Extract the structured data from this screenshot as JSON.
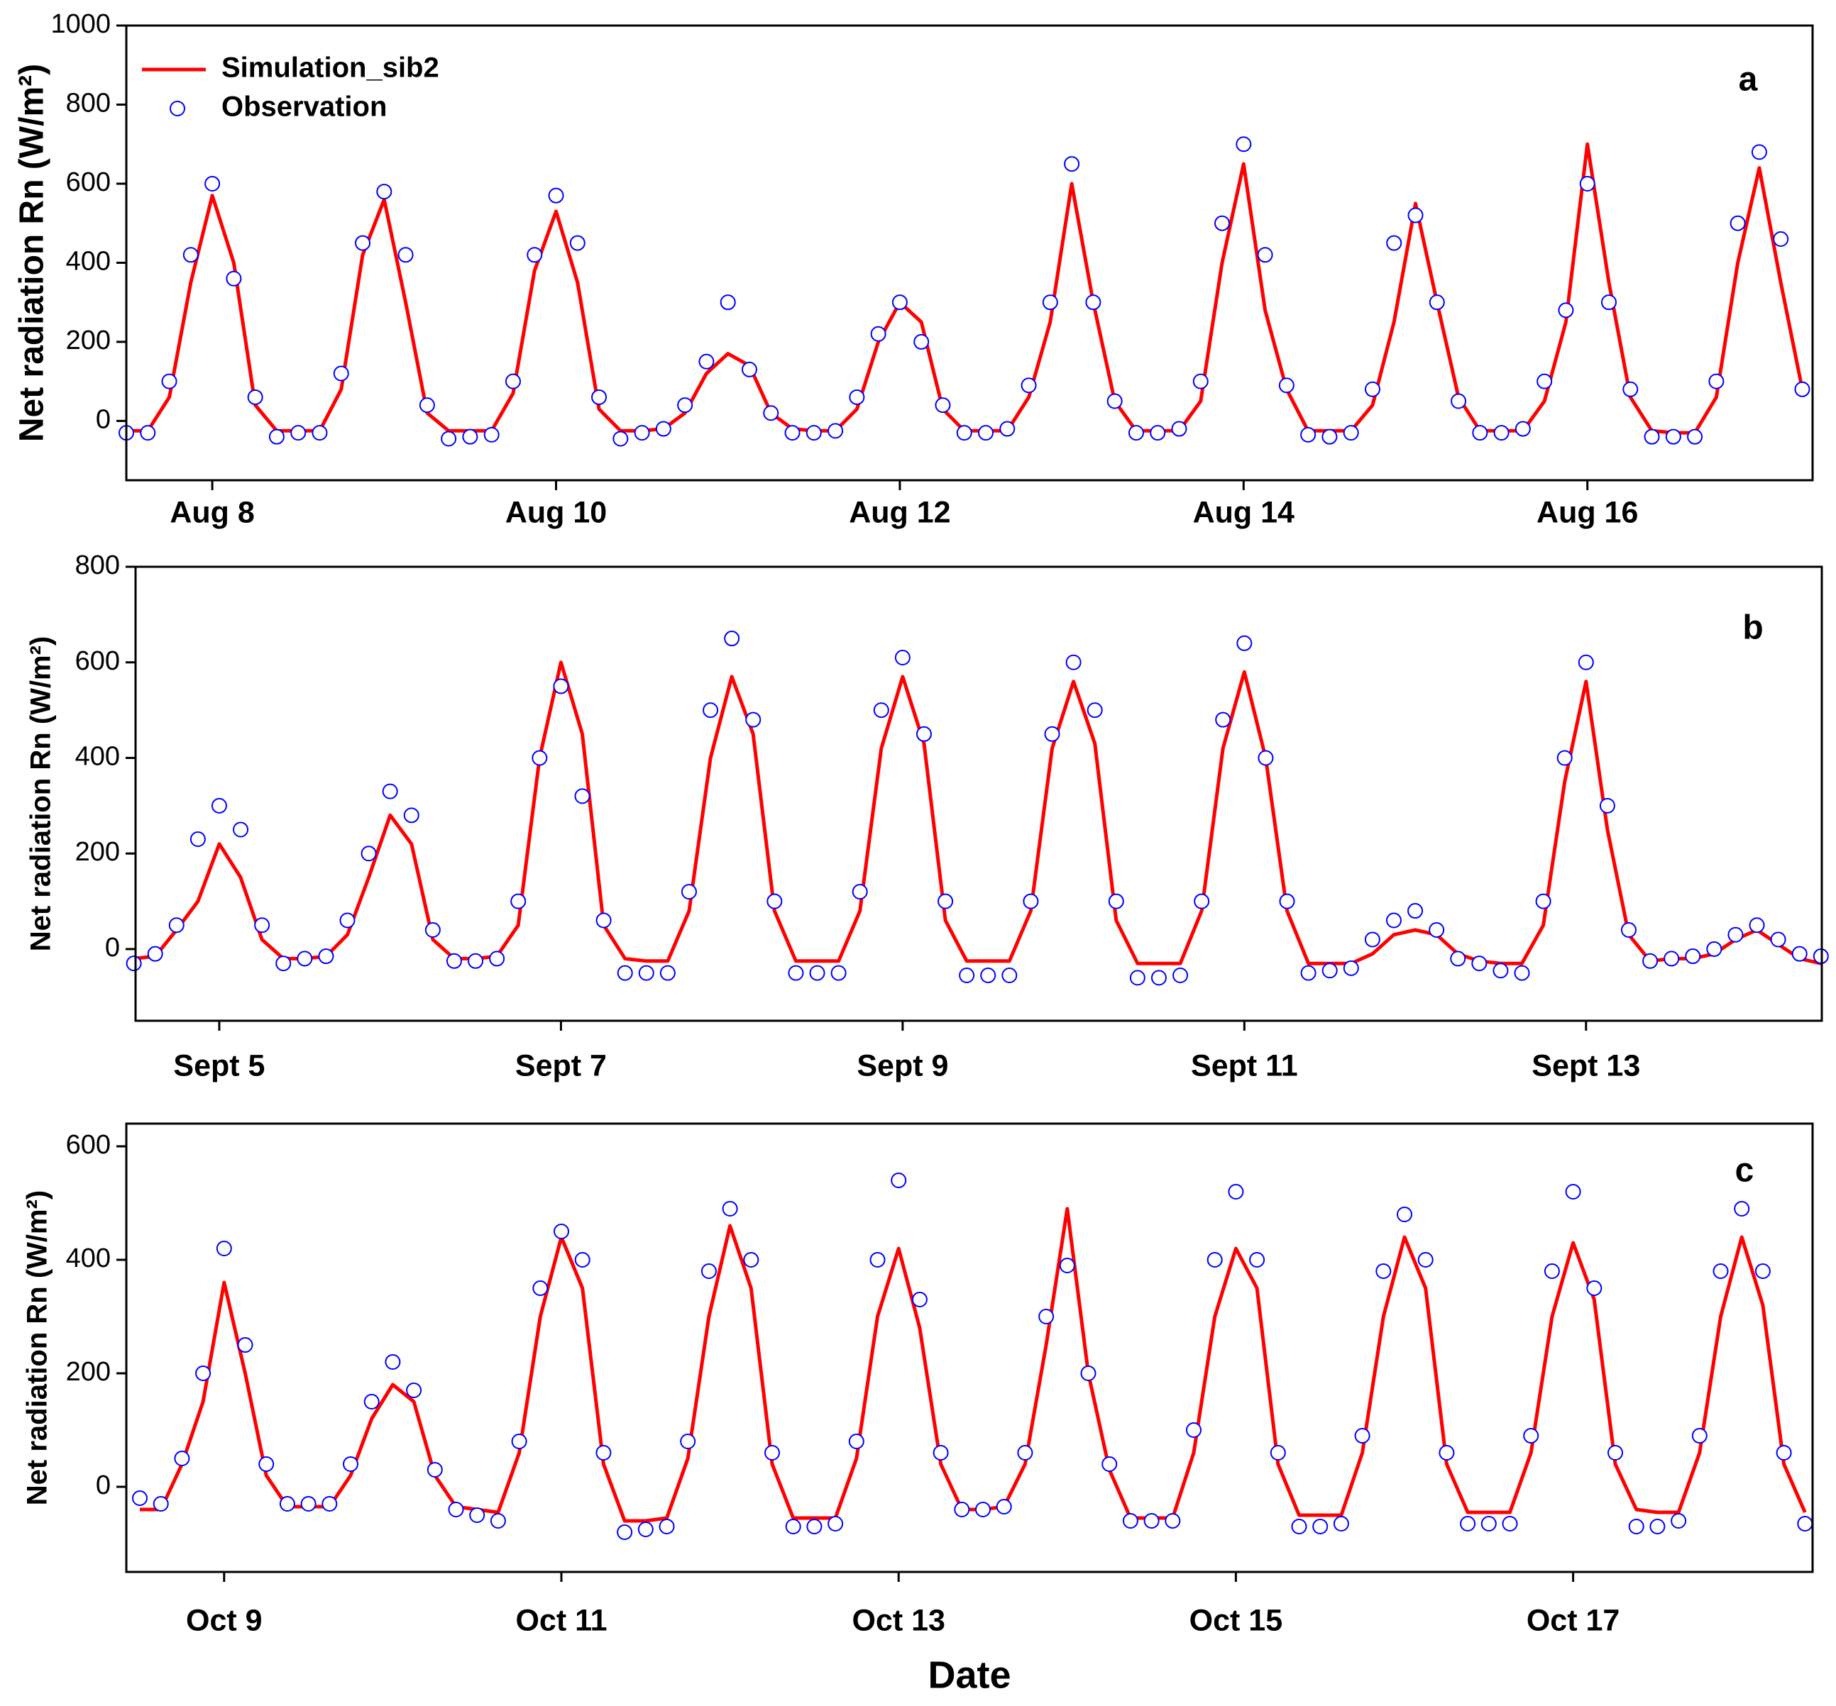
{
  "chart_data": [
    {
      "type": "line",
      "annotation": "a",
      "ylabel": "Net radiation Rn (W/m²)",
      "xlim": [
        7.5,
        17.31
      ],
      "xticks": [
        {
          "value": 8,
          "label": "Aug 8"
        },
        {
          "value": 10,
          "label": "Aug 10"
        },
        {
          "value": 12,
          "label": "Aug 12"
        },
        {
          "value": 14,
          "label": "Aug 14"
        },
        {
          "value": 16,
          "label": "Aug 16"
        }
      ],
      "ylim": [
        -150,
        1000
      ],
      "yticks": [
        0,
        200,
        400,
        600,
        800,
        1000
      ],
      "x": [
        7.5,
        7.625,
        7.75,
        7.875,
        8,
        8.125,
        8.25,
        8.375,
        8.5,
        8.625,
        8.75,
        8.875,
        9,
        9.125,
        9.25,
        9.375,
        9.5,
        9.625,
        9.75,
        9.875,
        10,
        10.125,
        10.25,
        10.375,
        10.5,
        10.625,
        10.75,
        10.875,
        11,
        11.125,
        11.25,
        11.375,
        11.5,
        11.625,
        11.75,
        11.875,
        12,
        12.125,
        12.25,
        12.375,
        12.5,
        12.625,
        12.75,
        12.875,
        13,
        13.125,
        13.25,
        13.375,
        13.5,
        13.625,
        13.75,
        13.875,
        14,
        14.125,
        14.25,
        14.375,
        14.5,
        14.625,
        14.75,
        14.875,
        15,
        15.125,
        15.25,
        15.375,
        15.5,
        15.625,
        15.75,
        15.875,
        16,
        16.125,
        16.25,
        16.375,
        16.5,
        16.625,
        16.75,
        16.875,
        17,
        17.125,
        17.25
      ],
      "series": [
        {
          "name": "Simulation_sib2",
          "mode": "line",
          "color": "#ff0000",
          "values": [
            -25,
            -25,
            60,
            350,
            570,
            400,
            40,
            -25,
            -25,
            -25,
            80,
            420,
            560,
            300,
            20,
            -25,
            -25,
            -25,
            70,
            380,
            530,
            350,
            30,
            -25,
            -25,
            -20,
            20,
            120,
            170,
            140,
            20,
            -20,
            -25,
            -25,
            30,
            200,
            300,
            250,
            30,
            -25,
            -25,
            -25,
            60,
            250,
            600,
            300,
            50,
            -25,
            -25,
            -25,
            50,
            400,
            650,
            280,
            80,
            -25,
            -25,
            -25,
            40,
            250,
            550,
            300,
            60,
            -25,
            -25,
            -25,
            50,
            250,
            700,
            350,
            60,
            -25,
            -30,
            -30,
            60,
            400,
            640,
            350,
            80
          ]
        },
        {
          "name": "Observation",
          "mode": "markers",
          "color": "#0000ff",
          "values": [
            -30,
            -30,
            100,
            420,
            600,
            360,
            60,
            -40,
            -30,
            -30,
            120,
            450,
            580,
            420,
            40,
            -45,
            -40,
            -35,
            100,
            420,
            570,
            450,
            60,
            -45,
            -30,
            -20,
            40,
            150,
            300,
            130,
            20,
            -30,
            -30,
            -25,
            60,
            220,
            300,
            200,
            40,
            -30,
            -30,
            -20,
            90,
            300,
            650,
            300,
            50,
            -30,
            -30,
            -20,
            100,
            500,
            700,
            420,
            90,
            -35,
            -40,
            -30,
            80,
            450,
            520,
            300,
            50,
            -30,
            -30,
            -20,
            100,
            280,
            600,
            300,
            80,
            -40,
            -40,
            -40,
            100,
            500,
            680,
            460,
            80
          ]
        }
      ]
    },
    {
      "type": "line",
      "annotation": "b",
      "ylabel": "Net radiation Rn (W/m²)",
      "xlim": [
        4.51,
        14.38
      ],
      "xticks": [
        {
          "value": 5,
          "label": "Sept 5"
        },
        {
          "value": 7,
          "label": "Sept 7"
        },
        {
          "value": 9,
          "label": "Sept 9"
        },
        {
          "value": 11,
          "label": "Sept 11"
        },
        {
          "value": 13,
          "label": "Sept 13"
        }
      ],
      "ylim": [
        -150,
        800
      ],
      "yticks": [
        0,
        200,
        400,
        600,
        800
      ],
      "x": [
        4.5,
        4.625,
        4.75,
        4.875,
        5,
        5.125,
        5.25,
        5.375,
        5.5,
        5.625,
        5.75,
        5.875,
        6,
        6.125,
        6.25,
        6.375,
        6.5,
        6.625,
        6.75,
        6.875,
        7,
        7.125,
        7.25,
        7.375,
        7.5,
        7.625,
        7.75,
        7.875,
        8,
        8.125,
        8.25,
        8.375,
        8.5,
        8.625,
        8.75,
        8.875,
        9,
        9.125,
        9.25,
        9.375,
        9.5,
        9.625,
        9.75,
        9.875,
        10,
        10.125,
        10.25,
        10.375,
        10.5,
        10.625,
        10.75,
        10.875,
        11,
        11.125,
        11.25,
        11.375,
        11.5,
        11.625,
        11.75,
        11.875,
        12,
        12.125,
        12.25,
        12.375,
        12.5,
        12.625,
        12.75,
        12.875,
        13,
        13.125,
        13.25,
        13.375,
        13.5,
        13.625,
        13.75,
        13.875,
        14,
        14.125,
        14.25,
        14.375
      ],
      "series": [
        {
          "mode": "line",
          "color": "#ff0000",
          "values": [
            -20,
            -15,
            40,
            100,
            220,
            150,
            20,
            -20,
            -20,
            -15,
            30,
            150,
            280,
            220,
            20,
            -20,
            -20,
            -15,
            50,
            400,
            600,
            450,
            50,
            -20,
            -25,
            -25,
            80,
            400,
            570,
            450,
            80,
            -25,
            -25,
            -25,
            80,
            420,
            570,
            430,
            60,
            -25,
            -25,
            -25,
            80,
            420,
            560,
            430,
            60,
            -30,
            -30,
            -30,
            80,
            420,
            580,
            400,
            80,
            -30,
            -30,
            -30,
            -10,
            30,
            40,
            30,
            -10,
            -25,
            -30,
            -30,
            50,
            350,
            560,
            250,
            30,
            -25,
            -20,
            -20,
            -10,
            20,
            40,
            10,
            -20,
            -30
          ]
        },
        {
          "mode": "markers",
          "color": "#0000ff",
          "values": [
            -30,
            -10,
            50,
            230,
            300,
            250,
            50,
            -30,
            -20,
            -15,
            60,
            200,
            330,
            280,
            40,
            -25,
            -25,
            -20,
            100,
            400,
            550,
            320,
            60,
            -50,
            -50,
            -50,
            120,
            500,
            650,
            480,
            100,
            -50,
            -50,
            -50,
            120,
            500,
            610,
            450,
            100,
            -55,
            -55,
            -55,
            100,
            450,
            600,
            500,
            100,
            -60,
            -60,
            -55,
            100,
            480,
            640,
            400,
            100,
            -50,
            -45,
            -40,
            20,
            60,
            80,
            40,
            -20,
            -30,
            -45,
            -50,
            100,
            400,
            600,
            300,
            40,
            -25,
            -20,
            -15,
            0,
            30,
            50,
            20,
            -10,
            -15
          ]
        }
      ]
    },
    {
      "type": "line",
      "annotation": "c",
      "ylabel": "Net radiation Rn (W/m²)",
      "xlabel": "Date",
      "xlim": [
        8.42,
        18.42
      ],
      "xticks": [
        {
          "value": 9,
          "label": "Oct 9"
        },
        {
          "value": 11,
          "label": "Oct 11"
        },
        {
          "value": 13,
          "label": "Oct 13"
        },
        {
          "value": 15,
          "label": "Oct 15"
        },
        {
          "value": 17,
          "label": "Oct 17"
        }
      ],
      "ylim": [
        -150,
        640
      ],
      "yticks": [
        0,
        200,
        400,
        600
      ],
      "x": [
        8.5,
        8.625,
        8.75,
        8.875,
        9,
        9.125,
        9.25,
        9.375,
        9.5,
        9.625,
        9.75,
        9.875,
        10,
        10.125,
        10.25,
        10.375,
        10.5,
        10.625,
        10.75,
        10.875,
        11,
        11.125,
        11.25,
        11.375,
        11.5,
        11.625,
        11.75,
        11.875,
        12,
        12.125,
        12.25,
        12.375,
        12.5,
        12.625,
        12.75,
        12.875,
        13,
        13.125,
        13.25,
        13.375,
        13.5,
        13.625,
        13.75,
        13.875,
        14,
        14.125,
        14.25,
        14.375,
        14.5,
        14.625,
        14.75,
        14.875,
        15,
        15.125,
        15.25,
        15.375,
        15.5,
        15.625,
        15.75,
        15.875,
        16,
        16.125,
        16.25,
        16.375,
        16.5,
        16.625,
        16.75,
        16.875,
        17,
        17.125,
        17.25,
        17.375,
        17.5,
        17.625,
        17.75,
        17.875,
        18,
        18.125,
        18.25,
        18.375
      ],
      "series": [
        {
          "mode": "line",
          "color": "#ff0000",
          "values": [
            -40,
            -40,
            40,
            150,
            360,
            200,
            20,
            -35,
            -35,
            -35,
            20,
            120,
            180,
            150,
            20,
            -35,
            -40,
            -45,
            60,
            300,
            440,
            350,
            40,
            -60,
            -60,
            -55,
            50,
            300,
            460,
            350,
            40,
            -55,
            -55,
            -55,
            50,
            300,
            420,
            280,
            40,
            -40,
            -40,
            -35,
            40,
            250,
            490,
            200,
            30,
            -55,
            -55,
            -55,
            60,
            300,
            420,
            350,
            40,
            -50,
            -50,
            -50,
            60,
            300,
            440,
            350,
            40,
            -45,
            -45,
            -45,
            60,
            300,
            430,
            330,
            40,
            -40,
            -45,
            -45,
            60,
            300,
            440,
            320,
            40,
            -45
          ]
        },
        {
          "mode": "markers",
          "color": "#0000ff",
          "values": [
            -20,
            -30,
            50,
            200,
            420,
            250,
            40,
            -30,
            -30,
            -30,
            40,
            150,
            220,
            170,
            30,
            -40,
            -50,
            -60,
            80,
            350,
            450,
            400,
            60,
            -80,
            -75,
            -70,
            80,
            380,
            490,
            400,
            60,
            -70,
            -70,
            -65,
            80,
            400,
            540,
            330,
            60,
            -40,
            -40,
            -35,
            60,
            300,
            390,
            200,
            40,
            -60,
            -60,
            -60,
            100,
            400,
            520,
            400,
            60,
            -70,
            -70,
            -65,
            90,
            380,
            480,
            400,
            60,
            -65,
            -65,
            -65,
            90,
            380,
            520,
            350,
            60,
            -70,
            -70,
            -60,
            90,
            380,
            490,
            380,
            60,
            -65
          ]
        }
      ]
    }
  ]
}
